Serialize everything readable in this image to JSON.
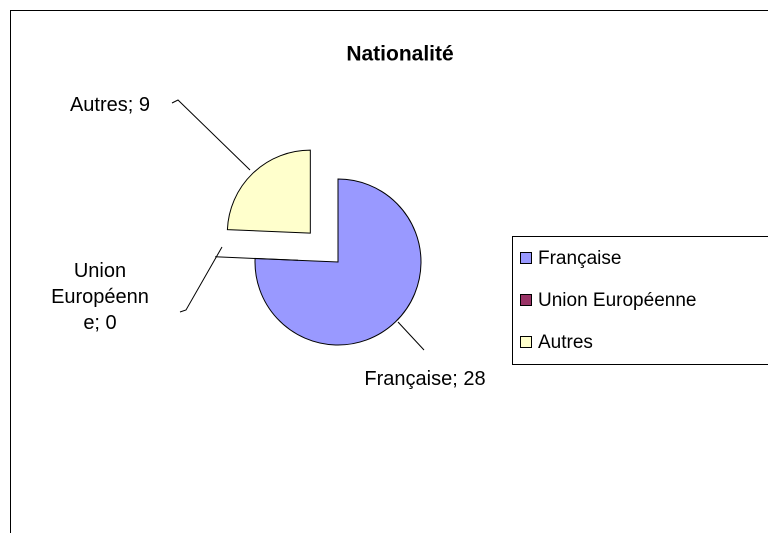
{
  "chart_data": {
    "type": "pie",
    "title": "Nationalité",
    "categories": [
      "Française",
      "Union Européenne",
      "Autres"
    ],
    "values": [
      28,
      0,
      9
    ],
    "value_labels": [
      "Française; 28",
      "Union Européenne; 0",
      "Autres; 9"
    ],
    "colors": [
      "#9999ff",
      "#993366",
      "#ffffcc"
    ],
    "explode": [
      false,
      true,
      true
    ],
    "legend": "right"
  }
}
